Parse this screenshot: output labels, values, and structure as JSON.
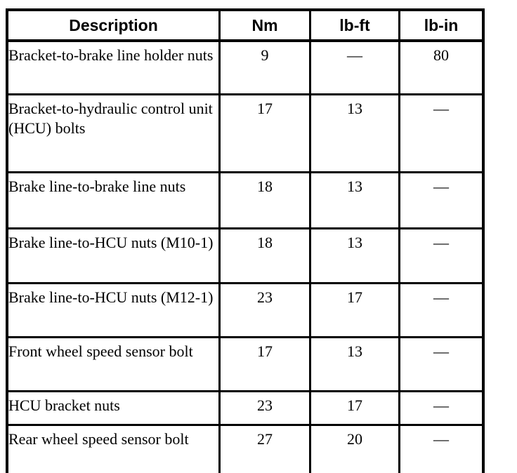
{
  "colors": {
    "border": "#000000",
    "text": "#000000",
    "background": "#ffffff"
  },
  "table": {
    "columns": [
      {
        "label": "Description"
      },
      {
        "label": "Nm"
      },
      {
        "label": "lb-ft"
      },
      {
        "label": "lb-in"
      }
    ],
    "rows": [
      {
        "description": "Bracket-to-brake line holder nuts",
        "nm": "9",
        "lb_ft": "—",
        "lb_in": "80"
      },
      {
        "description": "Bracket-to-hydraulic control unit (HCU) bolts",
        "nm": "17",
        "lb_ft": "13",
        "lb_in": "—"
      },
      {
        "description": "Brake line-to-brake line nuts",
        "nm": "18",
        "lb_ft": "13",
        "lb_in": "—"
      },
      {
        "description": "Brake line-to-HCU nuts (M10-1)",
        "nm": "18",
        "lb_ft": "13",
        "lb_in": "—"
      },
      {
        "description": "Brake line-to-HCU nuts (M12-1)",
        "nm": "23",
        "lb_ft": "17",
        "lb_in": "—"
      },
      {
        "description": "Front wheel speed sensor bolt",
        "nm": "17",
        "lb_ft": "13",
        "lb_in": "—"
      },
      {
        "description": "HCU bracket nuts",
        "nm": "23",
        "lb_ft": "17",
        "lb_in": "—"
      },
      {
        "description": "Rear wheel speed sensor bolt",
        "nm": "27",
        "lb_ft": "20",
        "lb_in": "—"
      }
    ]
  }
}
